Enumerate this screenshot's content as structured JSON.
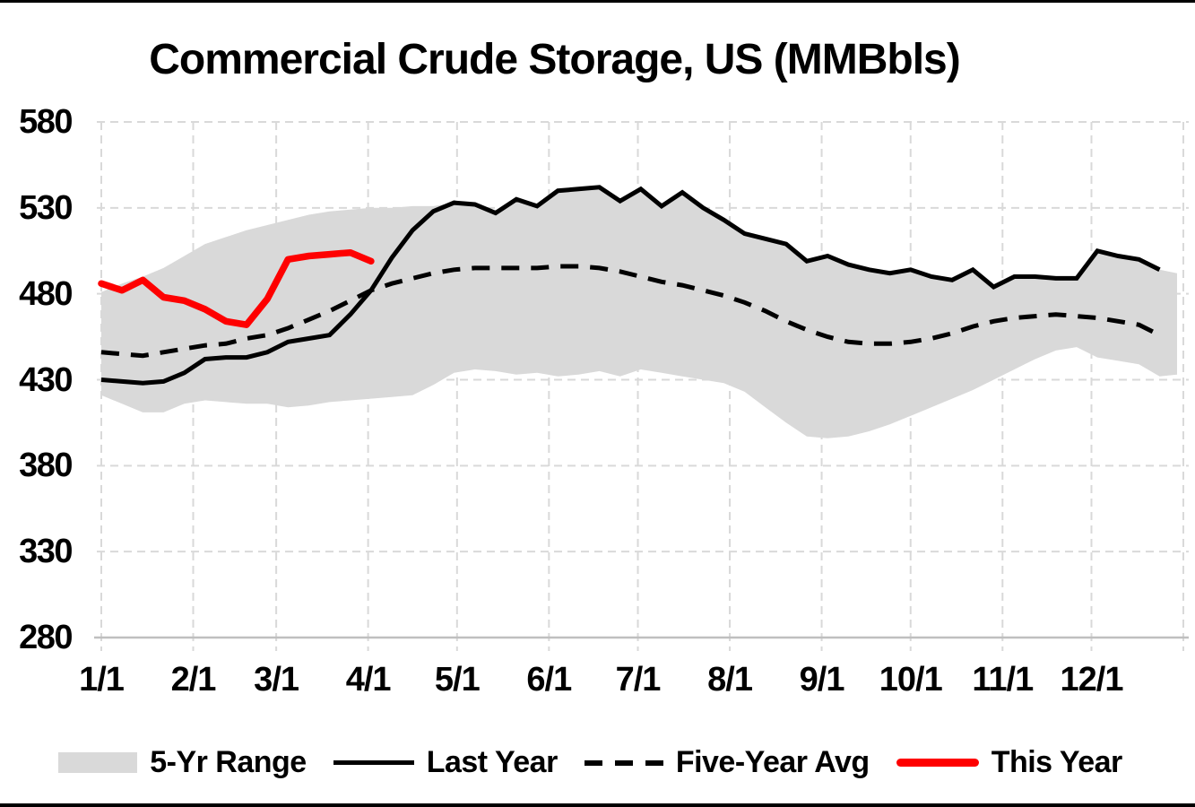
{
  "title": "Commercial Crude Storage, US (MMBbls)",
  "colors": {
    "range_fill": "#D9D9D9",
    "last_year": "#000000",
    "five_year_avg": "#000000",
    "this_year": "#FE0000",
    "gridline": "#D9D9D9",
    "axis_line": "#BFBFBF",
    "text": "#000000"
  },
  "y_axis": {
    "ticks": [
      580,
      530,
      480,
      430,
      380,
      330,
      280
    ],
    "min": 280,
    "max": 580
  },
  "x_axis": {
    "labels": [
      "1/1",
      "2/1",
      "3/1",
      "4/1",
      "5/1",
      "6/1",
      "7/1",
      "8/1",
      "9/1",
      "10/1",
      "11/1",
      "12/1"
    ],
    "month_start_days": [
      1,
      32,
      60,
      91,
      121,
      152,
      182,
      213,
      244,
      274,
      305,
      335
    ],
    "days_in_year": 365
  },
  "legend": {
    "items": [
      {
        "label": "5-Yr Range",
        "marker": "area-swatch"
      },
      {
        "label": "Last Year",
        "marker": "solid-black-line"
      },
      {
        "label": "Five-Year Avg",
        "marker": "dashed-black-line"
      },
      {
        "label": "This Year",
        "marker": "solid-red-line"
      }
    ]
  },
  "chart_data": {
    "type": "line",
    "title": "Commercial Crude Storage, US (MMBbls)",
    "ylabel": "MMBbls",
    "ylim": [
      280,
      580
    ],
    "grid": true,
    "legend_position": "bottom",
    "x_unit": "weekly, 52 weeks starting 1/1",
    "series": [
      {
        "name": "5-Yr Range",
        "type": "band",
        "fill": "#D9D9D9",
        "upper": [
          481,
          486,
          490,
          495,
          502,
          509,
          513,
          517,
          520,
          523,
          526,
          528,
          529,
          530,
          530,
          531,
          531,
          533,
          532,
          527,
          535,
          531,
          540,
          541,
          542,
          534,
          541,
          531,
          539,
          530,
          523,
          515,
          512,
          509,
          499,
          502,
          497,
          494,
          492,
          494,
          490,
          488,
          494,
          484,
          490,
          490,
          489,
          489,
          505,
          502,
          500,
          494
        ],
        "lower": [
          421,
          416,
          411,
          411,
          416,
          418,
          417,
          416,
          416,
          414,
          415,
          417,
          418,
          419,
          420,
          421,
          427,
          434,
          436,
          435,
          433,
          434,
          432,
          433,
          435,
          432,
          436,
          434,
          432,
          430,
          428,
          423,
          414,
          405,
          397,
          396,
          397,
          400,
          404,
          409,
          414,
          419,
          424,
          430,
          436,
          442,
          447,
          449,
          443,
          441,
          439,
          432
        ]
      },
      {
        "name": "Last Year",
        "type": "line",
        "line_style": "solid",
        "color": "#000000",
        "values": [
          430,
          429,
          428,
          429,
          434,
          442,
          443,
          443,
          446,
          452,
          454,
          456,
          468,
          482,
          501,
          517,
          528,
          533,
          532,
          527,
          535,
          531,
          540,
          541,
          542,
          534,
          541,
          531,
          539,
          530,
          523,
          515,
          512,
          509,
          499,
          502,
          497,
          494,
          492,
          494,
          490,
          488,
          494,
          484,
          490,
          490,
          489,
          489,
          505,
          502,
          500,
          494
        ]
      },
      {
        "name": "Five-Year Avg",
        "type": "line",
        "line_style": "dashed",
        "color": "#000000",
        "values": [
          446,
          445,
          444,
          446,
          448,
          450,
          451,
          454,
          456,
          460,
          465,
          470,
          476,
          482,
          486,
          489,
          492,
          494,
          495,
          495,
          495,
          495,
          496,
          496,
          495,
          493,
          490,
          487,
          485,
          482,
          479,
          475,
          470,
          464,
          459,
          455,
          452,
          451,
          451,
          452,
          454,
          457,
          461,
          464,
          466,
          467,
          468,
          467,
          466,
          464,
          462,
          456
        ]
      },
      {
        "name": "This Year",
        "type": "line",
        "line_style": "solid",
        "color": "#FE0000",
        "values": [
          486,
          482,
          488,
          478,
          476,
          471,
          464,
          462,
          477,
          500,
          502,
          503,
          504,
          499
        ]
      }
    ]
  }
}
